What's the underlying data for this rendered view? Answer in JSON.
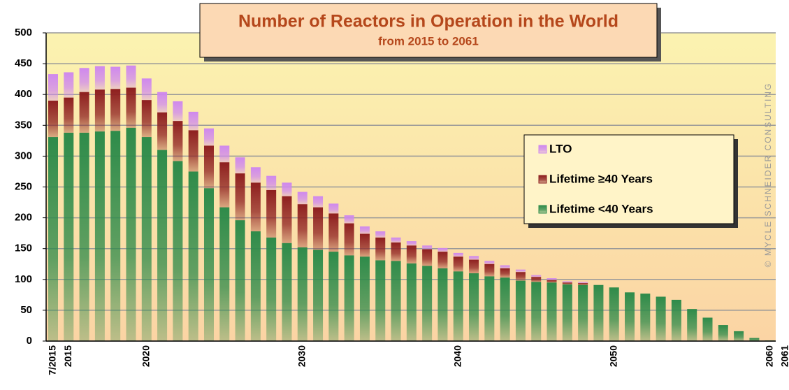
{
  "chart_data": {
    "type": "stacked_bar",
    "title": "Number of Reactors in Operation in the World",
    "subtitle": "from 2015 to 2061",
    "annotation": "© MYCLE SCHNEIDER CONSULTING",
    "categories": [
      "7/2015",
      "2015",
      null,
      null,
      null,
      null,
      "2020",
      null,
      null,
      null,
      null,
      null,
      null,
      null,
      null,
      null,
      "2030",
      null,
      null,
      null,
      null,
      null,
      null,
      null,
      null,
      null,
      "2040",
      null,
      null,
      null,
      null,
      null,
      null,
      null,
      null,
      null,
      "2050",
      null,
      null,
      null,
      null,
      null,
      null,
      null,
      null,
      null,
      "2060",
      "2061"
    ],
    "series": [
      {
        "name": "Lifetime <40 Years",
        "color": "#2e8b4a",
        "values": [
          331,
          338,
          338,
          340,
          341,
          346,
          331,
          310,
          292,
          275,
          248,
          217,
          196,
          178,
          168,
          159,
          152,
          148,
          145,
          139,
          137,
          131,
          130,
          126,
          122,
          118,
          113,
          110,
          105,
          103,
          98,
          96,
          95,
          92,
          91,
          91,
          87,
          79,
          77,
          72,
          67,
          52,
          38,
          26,
          16,
          5,
          1,
          0
        ]
      },
      {
        "name": "Lifetime ≥40 Years",
        "color": "#8e1f1f",
        "values": [
          59,
          57,
          66,
          68,
          68,
          65,
          60,
          61,
          65,
          67,
          69,
          73,
          76,
          79,
          77,
          76,
          70,
          69,
          62,
          52,
          37,
          37,
          30,
          29,
          27,
          27,
          24,
          22,
          20,
          15,
          14,
          8,
          4,
          3,
          3,
          0,
          0,
          0,
          0,
          0,
          0,
          0,
          0,
          0,
          0,
          0,
          0,
          0
        ]
      },
      {
        "name": "LTO",
        "color": "#cf88ee",
        "values": [
          43,
          41,
          39,
          38,
          36,
          36,
          35,
          33,
          32,
          30,
          28,
          27,
          26,
          25,
          23,
          22,
          20,
          18,
          16,
          13,
          12,
          10,
          8,
          7,
          6,
          6,
          6,
          6,
          5,
          5,
          4,
          3,
          3,
          2,
          2,
          0,
          0,
          0,
          0,
          0,
          0,
          0,
          0,
          0,
          0,
          0,
          0,
          0
        ]
      }
    ],
    "ylim": [
      0,
      500
    ],
    "yticks": [
      0,
      50,
      100,
      150,
      200,
      250,
      300,
      350,
      400,
      450,
      500
    ],
    "grid": true
  }
}
